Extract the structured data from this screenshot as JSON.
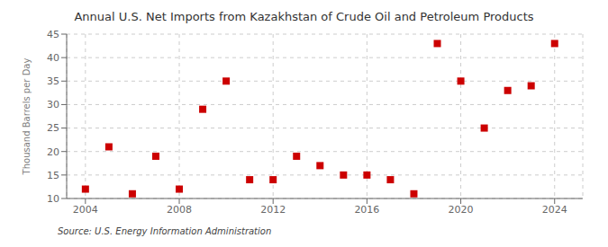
{
  "chart_data": {
    "type": "scatter",
    "title": "Annual U.S. Net Imports from Kazakhstan of Crude Oil and Petroleum Products",
    "ylabel": "Thousand Barrels per Day",
    "annotation": "Source: U.S. Energy Information Administration",
    "x": [
      2004,
      2005,
      2006,
      2007,
      2008,
      2009,
      2010,
      2011,
      2012,
      2013,
      2014,
      2015,
      2016,
      2017,
      2018,
      2019,
      2020,
      2021,
      2022,
      2023,
      2024
    ],
    "values": [
      12,
      21,
      11,
      19,
      12,
      29,
      35,
      14,
      14,
      19,
      17,
      15,
      15,
      14,
      11,
      43,
      35,
      25,
      33,
      34,
      43
    ],
    "color": "#cc0000",
    "marker": "square",
    "xlim": [
      2003.2,
      2025.2
    ],
    "ylim": [
      10,
      45
    ],
    "xticks": [
      2004,
      2008,
      2012,
      2016,
      2020,
      2024
    ],
    "yticks": [
      10,
      15,
      20,
      25,
      30,
      35,
      40,
      45
    ],
    "grid": true
  }
}
